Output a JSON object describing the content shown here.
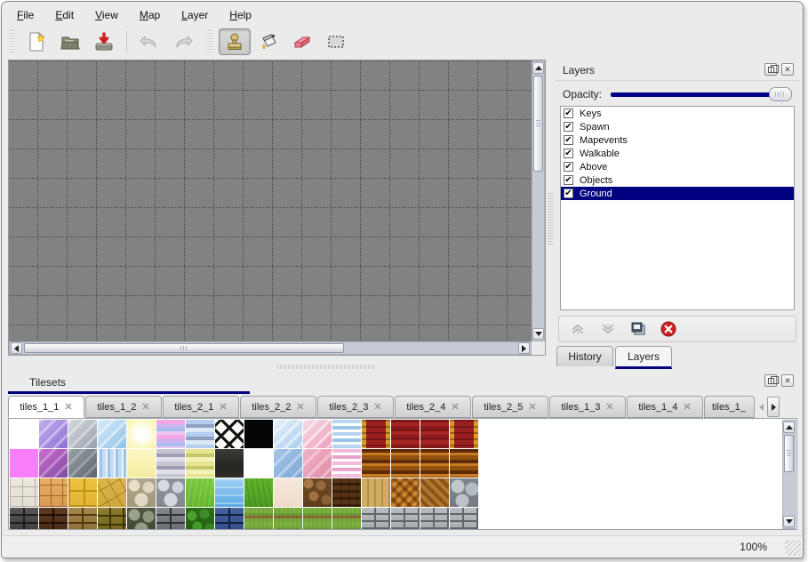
{
  "menu": {
    "items": [
      "File",
      "Edit",
      "View",
      "Map",
      "Layer",
      "Help"
    ]
  },
  "toolbar": {
    "icons": [
      "new-file-icon",
      "open-folder-icon",
      "save-icon",
      "undo-icon",
      "redo-icon",
      "stamp-tool-icon",
      "fill-tool-icon",
      "eraser-tool-icon",
      "rect-select-tool-icon"
    ],
    "selected_tool": "stamp"
  },
  "layers_panel": {
    "title": "Layers",
    "opacity_label": "Opacity:",
    "opacity_value_pct": 100,
    "layers": [
      {
        "name": "Keys",
        "checked": true,
        "selected": false
      },
      {
        "name": "Spawn",
        "checked": true,
        "selected": false
      },
      {
        "name": "Mapevents",
        "checked": true,
        "selected": false
      },
      {
        "name": "Walkable",
        "checked": true,
        "selected": false
      },
      {
        "name": "Above",
        "checked": true,
        "selected": false
      },
      {
        "name": "Objects",
        "checked": true,
        "selected": false
      },
      {
        "name": "Ground",
        "checked": true,
        "selected": true
      }
    ],
    "action_icons": [
      "move-layer-up-icon",
      "move-layer-down-icon",
      "duplicate-layer-icon",
      "delete-layer-icon"
    ],
    "tabs": [
      {
        "label": "History",
        "active": false
      },
      {
        "label": "Layers",
        "active": true
      }
    ]
  },
  "tilesets_panel": {
    "title": "Tilesets",
    "tabs": [
      {
        "label": "tiles_1_1",
        "active": true,
        "truncated": false
      },
      {
        "label": "tiles_1_2",
        "active": false,
        "truncated": false
      },
      {
        "label": "tiles_2_1",
        "active": false,
        "truncated": false
      },
      {
        "label": "tiles_2_2",
        "active": false,
        "truncated": false
      },
      {
        "label": "tiles_2_3",
        "active": false,
        "truncated": false
      },
      {
        "label": "tiles_2_4",
        "active": false,
        "truncated": false
      },
      {
        "label": "tiles_2_5",
        "active": false,
        "truncated": false
      },
      {
        "label": "tiles_1_3",
        "active": false,
        "truncated": false
      },
      {
        "label": "tiles_1_4",
        "active": false,
        "truncated": false
      },
      {
        "label": "tiles_1_",
        "active": false,
        "truncated": true
      }
    ],
    "close_glyph": "✕",
    "tiles": {
      "columns": 16,
      "rows": 4,
      "cells": [
        {
          "n": "empty-white",
          "bg": "#ffffff"
        },
        {
          "n": "purple-glass",
          "bg": "repeating-linear-gradient(135deg,rgba(255,255,255,.4) 0 3px,transparent 3px 11px),linear-gradient(135deg,#c4aef0,#8a70cf)"
        },
        {
          "n": "gray-glass",
          "bg": "repeating-linear-gradient(135deg,rgba(255,255,255,.4) 0 3px,transparent 3px 11px),linear-gradient(135deg,#d6dade,#97a0ac)"
        },
        {
          "n": "blue-glass",
          "bg": "repeating-linear-gradient(135deg,rgba(255,255,255,.5) 0 3px,transparent 3px 11px),linear-gradient(135deg,#d8ecf8,#8fc0e8)"
        },
        {
          "n": "yellow-glow",
          "bg": "radial-gradient(circle at 50% 50%,#ffffff 25%,#fcf7c4 70%,#f7efa5 100%)"
        },
        {
          "n": "pink-stripes",
          "bg": "repeating-linear-gradient(180deg,#f2a6e2 0 5px,#cdb4f0 5px 9px,#a8bcf0 9px 13px,#ecc6ee 13px 17px)"
        },
        {
          "n": "blue-stripes",
          "bg": "repeating-linear-gradient(180deg,#b4cdf0 0 5px,#8fa0c0 5px 9px,#dde8f8 9px 14px)"
        },
        {
          "n": "lattice",
          "bg": "repeating-linear-gradient(45deg,#141414 0 3px,transparent 3px 13px),repeating-linear-gradient(-45deg,#141414 0 3px,#f8f8f4 3px 13px)"
        },
        {
          "n": "black",
          "bg": "#050505"
        },
        {
          "n": "blue-glass-light",
          "bg": "repeating-linear-gradient(135deg,rgba(255,255,255,.55) 0 3px,transparent 3px 10px),linear-gradient(135deg,#e6f1fb,#a9cdec)"
        },
        {
          "n": "pink-glass",
          "bg": "repeating-linear-gradient(135deg,rgba(255,255,255,.55) 0 3px,transparent 3px 10px),linear-gradient(135deg,#f7dbe7,#ec9cba)"
        },
        {
          "n": "blue-waves",
          "bg": "repeating-linear-gradient(180deg,#b6d6f0 0 4px,#ffffff 4px 7px,#9cc6e8 7px 11px,#ffffff 11px 14px)"
        },
        {
          "n": "red-curtain-edge",
          "bg": "repeating-linear-gradient(180deg,rgba(40,0,0,.35) 0 2px,transparent 2px 7px),linear-gradient(90deg,#d79b2c 0 5px,#9c1f1f 5px 27px,#d79b2c 27px 33px)"
        },
        {
          "n": "red-curtain",
          "bg": "repeating-linear-gradient(180deg,#7c1717 0 3px,#a62525 3px 7px,#8e1b1b 7px 10px)"
        },
        {
          "n": "red-curtain",
          "bg": "repeating-linear-gradient(180deg,#7c1717 0 3px,#a62525 3px 7px,#8e1b1b 7px 10px)"
        },
        {
          "n": "red-curtain-edge",
          "bg": "repeating-linear-gradient(180deg,rgba(40,0,0,.35) 0 2px,transparent 2px 7px),linear-gradient(90deg,#d79b2c 0 5px,#9c1f1f 5px 27px,#d79b2c 27px 33px)"
        },
        {
          "n": "magenta",
          "bg": "#fa7efa"
        },
        {
          "n": "purple-glass-dark",
          "bg": "repeating-linear-gradient(135deg,rgba(255,255,255,.3) 0 3px,transparent 3px 11px),linear-gradient(135deg,#d06cd4,#7e4a9e)"
        },
        {
          "n": "gray-glass-dark",
          "bg": "repeating-linear-gradient(135deg,rgba(255,255,255,.25) 0 3px,transparent 3px 11px),linear-gradient(135deg,#9aa2aa,#5c646c)"
        },
        {
          "n": "water-shimmer",
          "bg": "repeating-linear-gradient(90deg,#eaf4fc 0 2px,#9ec2e6 2px 5px,#c6dcf2 5px 9px)"
        },
        {
          "n": "pale-yellow",
          "bg": "linear-gradient(180deg,#fcf8c8,#f4eb9e)"
        },
        {
          "n": "gray-lavender-stripes",
          "bg": "repeating-linear-gradient(180deg,#c6c6d2 0 5px,#9e9eb0 5px 9px,#e0e0ea 9px 14px)"
        },
        {
          "n": "olive-stripes",
          "bg": "repeating-linear-gradient(180deg,#e6e692 0 5px,#c6c66a 5px 9px,#f2f2b4 9px 14px)"
        },
        {
          "n": "dark-panel",
          "bg": "linear-gradient(180deg,#3c3c38 0%,#242420 60%,#302c28 100%)"
        },
        {
          "n": "empty-white",
          "bg": "#ffffff"
        },
        {
          "n": "blue-flat",
          "bg": "repeating-linear-gradient(135deg,rgba(255,255,255,.35) 0 3px,transparent 3px 12px),linear-gradient(135deg,#a6c6e8,#7ea6d6)"
        },
        {
          "n": "pink-flat",
          "bg": "repeating-linear-gradient(135deg,rgba(255,255,255,.35) 0 3px,transparent 3px 12px),linear-gradient(135deg,#f2b2c6,#e08ca8)"
        },
        {
          "n": "pink-waves",
          "bg": "repeating-linear-gradient(180deg,#f2bada 0 4px,#ffffff 4px 7px,#e8a2cc 7px 11px,#ffffff 11px 14px)"
        },
        {
          "n": "brown-curtain",
          "bg": "repeating-linear-gradient(180deg,#5e2a08 0 4px,#c87c22 4px 7px,#94500f 7px 12px)"
        },
        {
          "n": "brown-curtain",
          "bg": "repeating-linear-gradient(180deg,#5e2a08 0 4px,#c87c22 4px 7px,#94500f 7px 12px)"
        },
        {
          "n": "brown-curtain",
          "bg": "repeating-linear-gradient(180deg,#5e2a08 0 4px,#c87c22 4px 7px,#94500f 7px 12px)"
        },
        {
          "n": "brown-curtain",
          "bg": "repeating-linear-gradient(180deg,#5e2a08 0 4px,#c87c22 4px 7px,#94500f 7px 12px)"
        },
        {
          "n": "white-flagstone",
          "bg": "repeating-linear-gradient(0deg,#b4b0a4 0 1px,transparent 1px 11px),repeating-linear-gradient(90deg,#b4b0a4 0 1px,transparent 1px 14px),linear-gradient(#ece8e0,#e2ded4)"
        },
        {
          "n": "tan-flagstone",
          "bg": "repeating-linear-gradient(0deg,#a06830 0 1px,transparent 1px 12px),repeating-linear-gradient(90deg,#a06830 0 1px,transparent 1px 13px),linear-gradient(#e8ae66,#d89a50)"
        },
        {
          "n": "yellow-tiles",
          "bg": "repeating-linear-gradient(0deg,#bd9416 0 2px,transparent 2px 17px),repeating-linear-gradient(90deg,#bd9416 0 2px,transparent 2px 17px),linear-gradient(#ecc243,#e0b334)"
        },
        {
          "n": "gold-cracked-stone",
          "bg": "repeating-linear-gradient(60deg,#a8801c 0 1px,transparent 1px 12px),repeating-linear-gradient(-30deg,#a8801c 0 1px,transparent 1px 15px),linear-gradient(#dcb64e,#cfa73e)"
        },
        {
          "n": "beige-cobblestone",
          "bg": "radial-gradient(circle at 8px 8px,#e6dfc8 6px,transparent 7px),radial-gradient(circle at 24px 10px,#ded6bc 6px,transparent 7px),radial-gradient(circle at 16px 24px,#e2dac2 7px,transparent 8px),linear-gradient(#aca58c,#a09878)"
        },
        {
          "n": "gray-cobblestone",
          "bg": "radial-gradient(circle at 8px 8px,#d8dce0 6px,transparent 7px),radial-gradient(circle at 24px 10px,#ccd2d8 6px,transparent 7px),radial-gradient(circle at 16px 24px,#d2d8de 7px,transparent 8px),linear-gradient(#8d949c,#818890)"
        },
        {
          "n": "grass-bright",
          "bg": "repeating-linear-gradient(100deg,rgba(255,255,255,.12) 0 2px,transparent 2px 6px),linear-gradient(#7cc93c,#64b52c)"
        },
        {
          "n": "water",
          "bg": "repeating-linear-gradient(180deg,rgba(255,255,255,.35) 0 2px,transparent 2px 9px),linear-gradient(#9ed2f2,#5aa8e2)"
        },
        {
          "n": "grass-dark",
          "bg": "repeating-linear-gradient(80deg,rgba(0,60,0,.15) 0 2px,transparent 2px 6px),linear-gradient(#63b42e,#4f9c22)"
        },
        {
          "n": "sand",
          "bg": "linear-gradient(#f6e8da,#efdcc8)"
        },
        {
          "n": "pebble-dirt",
          "bg": "radial-gradient(circle at 6px 6px,#a87848 5px,transparent 6px),radial-gradient(circle at 20px 8px,#96683c 5px,transparent 6px),radial-gradient(circle at 12px 20px,#a06f42 5px,transparent 6px),radial-gradient(circle at 26px 24px,#8e6238 5px,transparent 6px),linear-gradient(#6e4a26,#5e3c1c)"
        },
        {
          "n": "wood-shingles",
          "bg": "repeating-linear-gradient(90deg,rgba(0,0,0,.35) 0 1px,transparent 1px 9px),repeating-linear-gradient(180deg,#5a3416 0 5px,#3a1f08 5px 8px)"
        },
        {
          "n": "wood-planks",
          "bg": "repeating-linear-gradient(90deg,#cfae64 0 6px,#b3904a 6px 8px)"
        },
        {
          "n": "basket-weave",
          "bg": "repeating-linear-gradient(-45deg,rgba(60,20,0,.35) 0 4px,transparent 4px 8px),repeating-linear-gradient(45deg,#d08a30 0 5px,#a05c14 5px 9px)"
        },
        {
          "n": "herringbone-wood",
          "bg": "repeating-linear-gradient(45deg,#b07830 0 4px,#8a5418 4px 8px)"
        },
        {
          "n": "gray-stones",
          "bg": "radial-gradient(circle at 9px 9px,#c2c8cc 7px,transparent 8px),radial-gradient(circle at 25px 12px,#b4bcc2 7px,transparent 8px),radial-gradient(circle at 14px 25px,#bcc2c8 7px,transparent 8px),linear-gradient(#7e868c,#747c82)"
        },
        {
          "n": "dark-gray-brick-wall",
          "bg": "repeating-linear-gradient(180deg,transparent 0 7px,#1c1c1c 7px 9px),repeating-linear-gradient(90deg,transparent 0 15px,#1c1c1c 15px 17px),linear-gradient(#565656,#3a3a3a)"
        },
        {
          "n": "brown-brick-wall",
          "bg": "repeating-linear-gradient(180deg,transparent 0 7px,#1e0e04 7px 9px),repeating-linear-gradient(90deg,transparent 0 15px,#1e0e04 15px 17px),linear-gradient(#5e3a24,#462812)"
        },
        {
          "n": "tan-brick-wall",
          "bg": "repeating-linear-gradient(180deg,transparent 0 7px,#4a3a14 7px 9px),repeating-linear-gradient(90deg,transparent 0 15px,#4a3a14 15px 17px),linear-gradient(#a8854a,#8a6a34)"
        },
        {
          "n": "olive-stone-wall",
          "bg": "repeating-linear-gradient(180deg,transparent 0 8px,#3c3408 8px 10px),repeating-linear-gradient(90deg,transparent 0 13px,#3c3408 13px 15px),linear-gradient(#8e7e2e,#6e6018)"
        },
        {
          "n": "green-cobble-wall",
          "bg": "radial-gradient(circle at 8px 8px,#9aa28c 6px,transparent 7px),radial-gradient(circle at 24px 10px,#8e9680 6px,transparent 7px),radial-gradient(circle at 16px 24px,#949c86 7px,transparent 8px),linear-gradient(#4e5644,#3e4634)"
        },
        {
          "n": "gray-brick-wall",
          "bg": "repeating-linear-gradient(180deg,transparent 0 7px,#2e3236 7px 9px),repeating-linear-gradient(90deg,transparent 0 15px,#2e3236 15px 17px),linear-gradient(#84888c,#63686c)"
        },
        {
          "n": "hedge",
          "bg": "radial-gradient(circle at 7px 9px,#4da032 5px,transparent 6px),radial-gradient(circle at 21px 7px,#3d8c26 5px,transparent 6px),radial-gradient(circle at 13px 21px,#459a2c 5px,transparent 6px),radial-gradient(circle at 27px 23px,#36841f 5px,transparent 6px),linear-gradient(#2c6e16,#1f5c0e)"
        },
        {
          "n": "blue-brick-wall",
          "bg": "repeating-linear-gradient(180deg,transparent 0 7px,#14203c 7px 9px),repeating-linear-gradient(90deg,transparent 0 15px,#14203c 15px 17px),linear-gradient(#44639e,#2e4a84)"
        },
        {
          "n": "farm-rows",
          "bg": "repeating-linear-gradient(90deg,rgba(0,0,0,.06) 0 2px,transparent 2px 5px),repeating-linear-gradient(180deg,#7cb040 0 6px,#6e9c34 6px 9px,#8a6a3a 9px 12px,#79aa3c 12px 16px)"
        },
        {
          "n": "farm-rows",
          "bg": "repeating-linear-gradient(90deg,rgba(0,0,0,.06) 0 2px,transparent 2px 5px),repeating-linear-gradient(180deg,#7cb040 0 6px,#6e9c34 6px 9px,#8a6a3a 9px 12px,#79aa3c 12px 16px)"
        },
        {
          "n": "farm-rows",
          "bg": "repeating-linear-gradient(90deg,rgba(0,0,0,.06) 0 2px,transparent 2px 5px),repeating-linear-gradient(180deg,#7cb040 0 6px,#6e9c34 6px 9px,#8a6a3a 9px 12px,#79aa3c 12px 16px)"
        },
        {
          "n": "farm-rows",
          "bg": "repeating-linear-gradient(90deg,rgba(0,0,0,.06) 0 2px,transparent 2px 5px),repeating-linear-gradient(180deg,#7cb040 0 6px,#6e9c34 6px 9px,#8a6a3a 9px 12px,#79aa3c 12px 16px)"
        },
        {
          "n": "stone-brick-wall",
          "bg": "repeating-linear-gradient(180deg,transparent 0 6px,#61676d 6px 8px),repeating-linear-gradient(90deg,transparent 0 14px,#61676d 14px 16px),linear-gradient(#b8bcc0,#a2a8ac)"
        },
        {
          "n": "stone-brick-wall",
          "bg": "repeating-linear-gradient(180deg,transparent 0 6px,#61676d 6px 8px),repeating-linear-gradient(90deg,transparent 0 14px,#61676d 14px 16px),linear-gradient(#b8bcc0,#a2a8ac)"
        },
        {
          "n": "stone-brick-wall",
          "bg": "repeating-linear-gradient(180deg,transparent 0 6px,#61676d 6px 8px),repeating-linear-gradient(90deg,transparent 0 14px,#61676d 14px 16px),linear-gradient(#b8bcc0,#a2a8ac)"
        },
        {
          "n": "stone-brick-wall",
          "bg": "repeating-linear-gradient(180deg,transparent 0 6px,#61676d 6px 8px),repeating-linear-gradient(90deg,transparent 0 14px,#61676d 14px 16px),linear-gradient(#b8bcc0,#a2a8ac)"
        }
      ]
    }
  },
  "status_bar": {
    "zoom_level": "100%"
  },
  "colors": {
    "accent_navy": "#000080",
    "opacity_track": "#00008b",
    "canvas_gray": "#828282",
    "selection_text": "#ffffff",
    "window_bg": "#ebebeb",
    "scroll_trough": "#c7cbd6",
    "eraser_pink": "#f2788a",
    "delete_red": "#cc2222"
  },
  "check_glyph": "✔"
}
